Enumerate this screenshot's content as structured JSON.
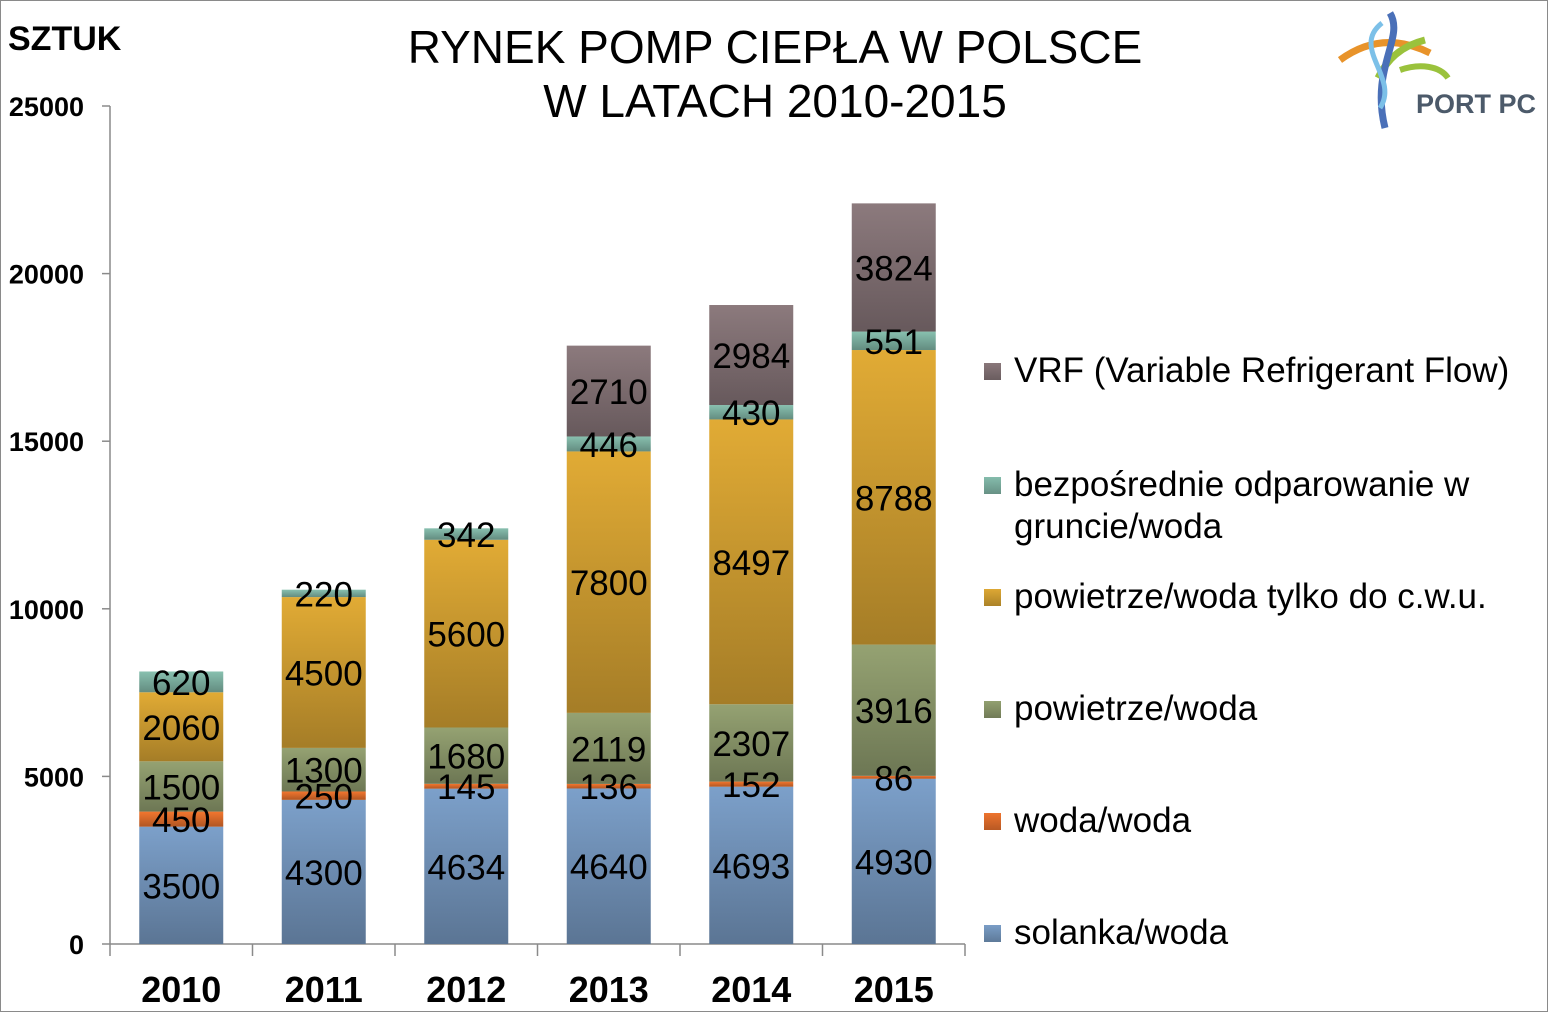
{
  "header": {
    "unit_label": "SZTUK",
    "title_line1": "RYNEK POMP CIEPŁA W POLSCE",
    "title_line2": "W LATACH 2010-2015",
    "logo_text": "PORT PC"
  },
  "colors": {
    "solanka": "#6f8fb4",
    "woda": "#d8692a",
    "powietrze": "#859166",
    "cwu": "#c9992f",
    "bezposrednie": "#79ab9c",
    "vrf": "#7d6d70"
  },
  "chart_data": {
    "type": "bar",
    "stacked": true,
    "categories": [
      "2010",
      "2011",
      "2012",
      "2013",
      "2014",
      "2015"
    ],
    "ylim": [
      0,
      25000
    ],
    "yticks": [
      "0",
      "5000",
      "10000",
      "15000",
      "20000",
      "25000"
    ],
    "ytick_values": [
      0,
      5000,
      10000,
      15000,
      20000,
      25000
    ],
    "ylabel": "SZTUK",
    "legend_placement": "right",
    "series": [
      {
        "name": "solanka/woda",
        "key": "solanka",
        "values": [
          3500,
          4300,
          4634,
          4640,
          4693,
          4930
        ],
        "labels": [
          "3500",
          "4300",
          "4634",
          "4640",
          "4693",
          "4930"
        ]
      },
      {
        "name": "woda/woda",
        "key": "woda",
        "values": [
          450,
          250,
          145,
          136,
          152,
          86
        ],
        "labels": [
          "450",
          "250",
          "145",
          "136",
          "152",
          "86"
        ]
      },
      {
        "name": "powietrze/woda",
        "key": "powietrze",
        "values": [
          1500,
          1300,
          1680,
          2119,
          2307,
          3916
        ],
        "labels": [
          "1500",
          "1300",
          "1680",
          "2119",
          "2307",
          "3916"
        ]
      },
      {
        "name": "powietrze/woda tylko do c.w.u.",
        "key": "cwu",
        "values": [
          2060,
          4500,
          5600,
          7800,
          8497,
          8788
        ],
        "labels": [
          "2060",
          "4500",
          "5600",
          "7800",
          "8497",
          "8788"
        ]
      },
      {
        "name": "bezpośrednie odparowanie w gruncie/woda",
        "key": "bezposrednie",
        "values": [
          620,
          220,
          342,
          446,
          430,
          551
        ],
        "labels": [
          "620",
          "220",
          "342",
          "446",
          "430",
          "551"
        ]
      },
      {
        "name": "VRF (Variable Refrigerant Flow)",
        "key": "vrf",
        "values": [
          0,
          0,
          0,
          2710,
          2984,
          3824
        ],
        "labels": [
          "",
          "",
          "",
          "2710",
          "2984",
          "3824"
        ]
      }
    ]
  }
}
